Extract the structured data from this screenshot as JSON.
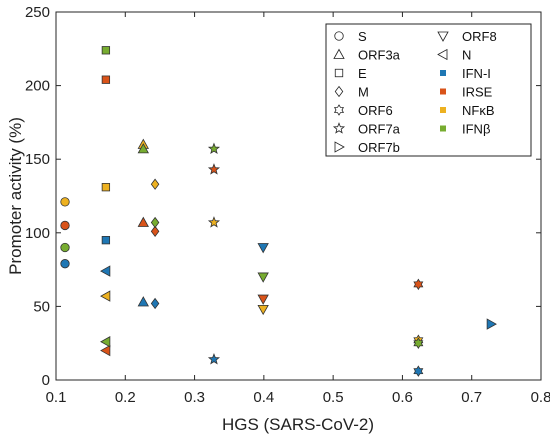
{
  "chart_data": {
    "type": "scatter",
    "xlabel": "HGS (SARS-CoV-2)",
    "ylabel": "Promoter activity (%)",
    "xlim": [
      0.1,
      0.8
    ],
    "ylim": [
      0,
      250
    ],
    "xticks": [
      0.1,
      0.2,
      0.3,
      0.4,
      0.5,
      0.6,
      0.7,
      0.8
    ],
    "yticks": [
      0,
      50,
      100,
      150,
      200,
      250
    ],
    "xtick_labels": [
      "0.1",
      "0.2",
      "0.3",
      "0.4",
      "0.5",
      "0.6",
      "0.7",
      "0.8"
    ],
    "ytick_labels": [
      "0",
      "50",
      "100",
      "150",
      "200",
      "250"
    ],
    "grid": false,
    "legend_position": "top-right",
    "proteins": [
      {
        "name": "S",
        "marker": "circle"
      },
      {
        "name": "ORF3a",
        "marker": "triangle-up"
      },
      {
        "name": "E",
        "marker": "square"
      },
      {
        "name": "M",
        "marker": "diamond"
      },
      {
        "name": "ORF6",
        "marker": "hexagram"
      },
      {
        "name": "ORF7a",
        "marker": "star"
      },
      {
        "name": "ORF7b",
        "marker": "triangle-right"
      },
      {
        "name": "ORF8",
        "marker": "triangle-down"
      },
      {
        "name": "N",
        "marker": "triangle-left"
      }
    ],
    "series": [
      {
        "name": "IFN-I",
        "color": "#1f77b4",
        "points": [
          {
            "protein": "S",
            "x": 0.113,
            "y": 79
          },
          {
            "protein": "E",
            "x": 0.172,
            "y": 95
          },
          {
            "protein": "N",
            "x": 0.172,
            "y": 74
          },
          {
            "protein": "ORF3a",
            "x": 0.226,
            "y": 53
          },
          {
            "protein": "M",
            "x": 0.243,
            "y": 52
          },
          {
            "protein": "ORF7a",
            "x": 0.328,
            "y": 14
          },
          {
            "protein": "ORF8",
            "x": 0.399,
            "y": 90
          },
          {
            "protein": "ORF6",
            "x": 0.623,
            "y": 6
          },
          {
            "protein": "ORF7b",
            "x": 0.728,
            "y": 38
          }
        ]
      },
      {
        "name": "IRSE",
        "color": "#d95319",
        "points": [
          {
            "protein": "S",
            "x": 0.113,
            "y": 105
          },
          {
            "protein": "E",
            "x": 0.172,
            "y": 204
          },
          {
            "protein": "N",
            "x": 0.172,
            "y": 20
          },
          {
            "protein": "ORF3a",
            "x": 0.226,
            "y": 107
          },
          {
            "protein": "M",
            "x": 0.243,
            "y": 101
          },
          {
            "protein": "ORF7a",
            "x": 0.328,
            "y": 143
          },
          {
            "protein": "ORF8",
            "x": 0.399,
            "y": 55
          },
          {
            "protein": "ORF6",
            "x": 0.623,
            "y": 65
          }
        ]
      },
      {
        "name": "NFκB",
        "color": "#edb120",
        "points": [
          {
            "protein": "S",
            "x": 0.113,
            "y": 121
          },
          {
            "protein": "E",
            "x": 0.172,
            "y": 131
          },
          {
            "protein": "N",
            "x": 0.172,
            "y": 57
          },
          {
            "protein": "ORF3a",
            "x": 0.226,
            "y": 160
          },
          {
            "protein": "M",
            "x": 0.243,
            "y": 133
          },
          {
            "protein": "ORF7a",
            "x": 0.328,
            "y": 107
          },
          {
            "protein": "ORF8",
            "x": 0.399,
            "y": 48
          },
          {
            "protein": "ORF6",
            "x": 0.623,
            "y": 27
          }
        ]
      },
      {
        "name": "IFNβ",
        "color": "#77ac30",
        "points": [
          {
            "protein": "S",
            "x": 0.113,
            "y": 90
          },
          {
            "protein": "E",
            "x": 0.172,
            "y": 224
          },
          {
            "protein": "N",
            "x": 0.172,
            "y": 26
          },
          {
            "protein": "ORF3a",
            "x": 0.226,
            "y": 157
          },
          {
            "protein": "M",
            "x": 0.243,
            "y": 107
          },
          {
            "protein": "ORF7a",
            "x": 0.328,
            "y": 157
          },
          {
            "protein": "ORF8",
            "x": 0.399,
            "y": 70
          },
          {
            "protein": "ORF6",
            "x": 0.623,
            "y": 25
          }
        ]
      }
    ]
  }
}
